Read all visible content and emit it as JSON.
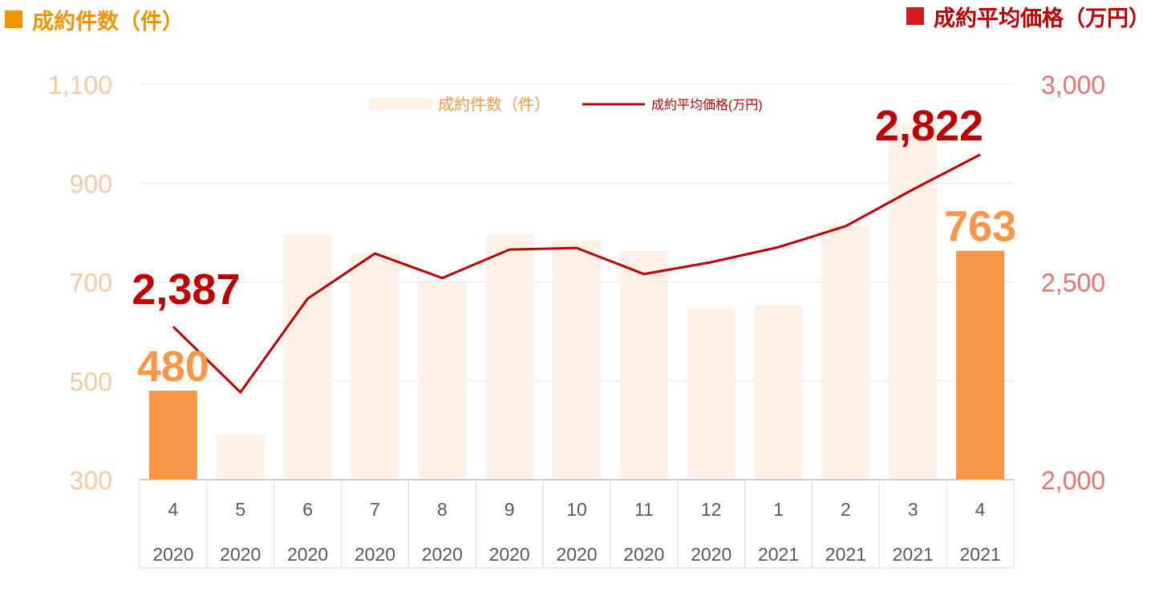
{
  "header": {
    "left_title": "成約件数（件）",
    "right_title": "成約平均価格（万円）"
  },
  "colors": {
    "bar_light": "#fdf0e6",
    "bar_highlight": "#f79646",
    "line": "#c00000",
    "left_axis": "#f8c8a0",
    "right_axis": "#f07070",
    "title_left": "#f39200",
    "title_right": "#c00000"
  },
  "chart_data": {
    "type": "bar",
    "categories": [
      {
        "month": "4",
        "year": "2020"
      },
      {
        "month": "5",
        "year": "2020"
      },
      {
        "month": "6",
        "year": "2020"
      },
      {
        "month": "7",
        "year": "2020"
      },
      {
        "month": "8",
        "year": "2020"
      },
      {
        "month": "9",
        "year": "2020"
      },
      {
        "month": "10",
        "year": "2020"
      },
      {
        "month": "11",
        "year": "2020"
      },
      {
        "month": "12",
        "year": "2020"
      },
      {
        "month": "1",
        "year": "2021"
      },
      {
        "month": "2",
        "year": "2021"
      },
      {
        "month": "3",
        "year": "2021"
      },
      {
        "month": "4",
        "year": "2021"
      }
    ],
    "series": [
      {
        "name": "成約件数（件）",
        "type": "bar",
        "axis": "left",
        "values": [
          480,
          391,
          796,
          758,
          699,
          796,
          783,
          762,
          648,
          653,
          815,
          1021,
          763
        ],
        "highlight": [
          0,
          12
        ]
      },
      {
        "name": "成約平均価格(万円)",
        "type": "line",
        "axis": "right",
        "values": [
          2387,
          2221,
          2458,
          2572,
          2510,
          2582,
          2586,
          2520,
          2550,
          2588,
          2641,
          2734,
          2822
        ]
      }
    ],
    "left_axis": {
      "ticks": [
        "300",
        "500",
        "700",
        "900",
        "1,100"
      ],
      "range": [
        300,
        1100
      ]
    },
    "right_axis": {
      "ticks": [
        "2,000",
        "2,500",
        "3,000"
      ],
      "range": [
        2000,
        3000
      ]
    },
    "data_labels": {
      "bar_first": "480",
      "bar_last": "763",
      "line_first": "2,387",
      "line_last": "2,822"
    },
    "legend": {
      "position": "top-center",
      "bar_label": "成約件数（件）",
      "line_label": "成約平均価格(万円)"
    },
    "gridlines": true
  }
}
